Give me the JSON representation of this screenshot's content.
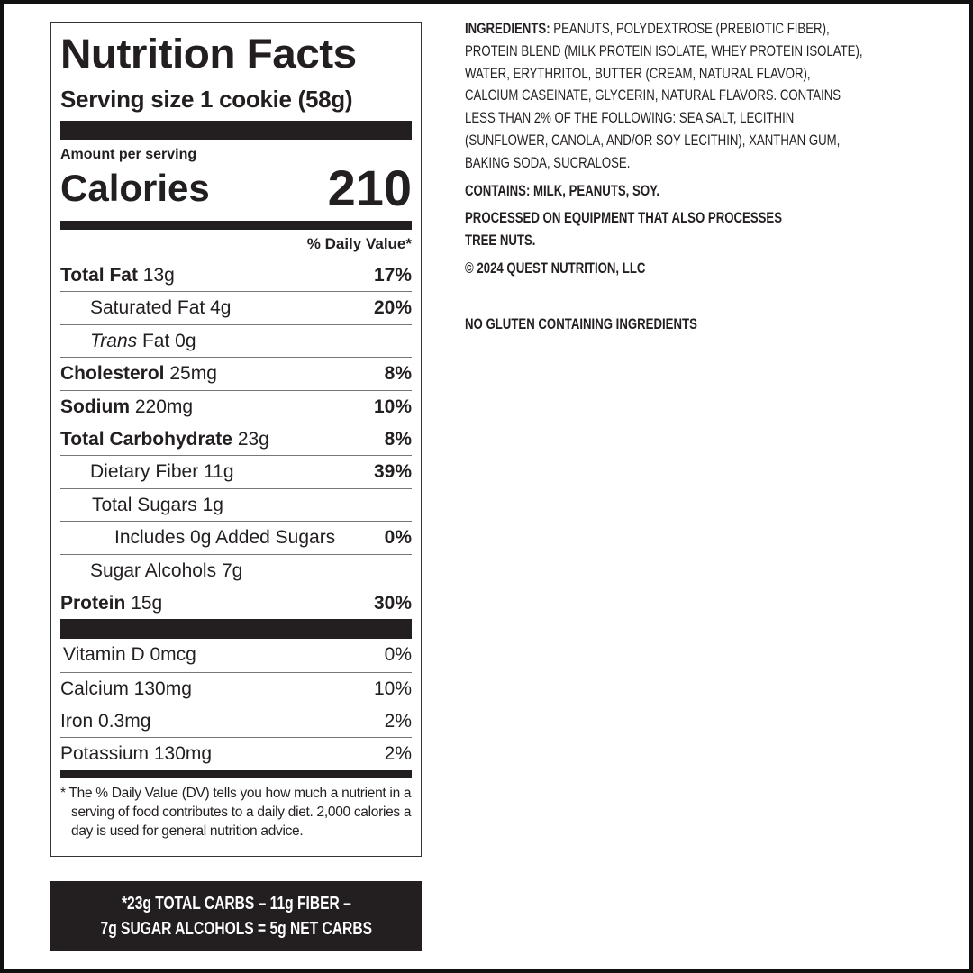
{
  "label": {
    "title": "Nutrition Facts",
    "serving_size": "Serving size 1 cookie (58g)",
    "amount_per_serving": "Amount per serving",
    "calories_label": "Calories",
    "calories_value": "210",
    "daily_value_header": "% Daily Value*",
    "nutrients": [
      {
        "name": "Total Fat",
        "amount": "13g",
        "dv": "17%"
      },
      {
        "name": "Saturated Fat",
        "amount": "4g",
        "dv": "20%"
      },
      {
        "name": "Trans",
        "amount": "Fat 0g",
        "dv": ""
      },
      {
        "name": "Cholesterol",
        "amount": "25mg",
        "dv": "8%"
      },
      {
        "name": "Sodium",
        "amount": "220mg",
        "dv": "10%"
      },
      {
        "name": "Total Carbohydrate",
        "amount": "23g",
        "dv": "8%"
      },
      {
        "name": "Dietary Fiber",
        "amount": "11g",
        "dv": "39%"
      },
      {
        "name": "Total Sugars",
        "amount": "1g",
        "dv": ""
      },
      {
        "name": "Includes 0g Added Sugars",
        "amount": "",
        "dv": "0%"
      },
      {
        "name": "Sugar Alcohols",
        "amount": "7g",
        "dv": ""
      },
      {
        "name": "Protein",
        "amount": "15g",
        "dv": "30%"
      }
    ],
    "vitamins": [
      {
        "name": "Vitamin D 0mcg",
        "dv": "0%"
      },
      {
        "name": "Calcium 130mg",
        "dv": "10%"
      },
      {
        "name": "Iron 0.3mg",
        "dv": "2%"
      },
      {
        "name": "Potassium 130mg",
        "dv": "2%"
      }
    ],
    "footnote": "* The % Daily Value (DV) tells you how much a nutrient in a serving of food contributes to a daily diet. 2,000 calories a day is used for general nutrition advice."
  },
  "net_carbs": {
    "line1": "*23g TOTAL CARBS – 11g FIBER –",
    "line2": "7g SUGAR ALCOHOLS = 5g NET CARBS"
  },
  "ingredients": {
    "label": "INGREDIENTS:",
    "lines": [
      "PEANUTS, POLYDEXTROSE (PREBIOTIC FIBER),",
      "PROTEIN BLEND (MILK PROTEIN ISOLATE, WHEY PROTEIN ISOLATE),",
      "WATER, ERYTHRITOL, BUTTER (CREAM, NATURAL FLAVOR),",
      "CALCIUM CASEINATE, GLYCERIN, NATURAL FLAVORS. CONTAINS",
      "LESS THAN 2% OF THE FOLLOWING: SEA SALT, LECITHIN",
      "(SUNFLOWER, CANOLA, AND/OR SOY LECITHIN), XANTHAN GUM,",
      "BAKING SODA, SUCRALOSE."
    ],
    "contains": "CONTAINS: MILK, PEANUTS, SOY.",
    "processed_1": "PROCESSED ON EQUIPMENT THAT ALSO PROCESSES",
    "processed_2": "TREE NUTS.",
    "copyright": "© 2024 QUEST NUTRITION, LLC",
    "gluten": "NO GLUTEN CONTAINING INGREDIENTS"
  }
}
